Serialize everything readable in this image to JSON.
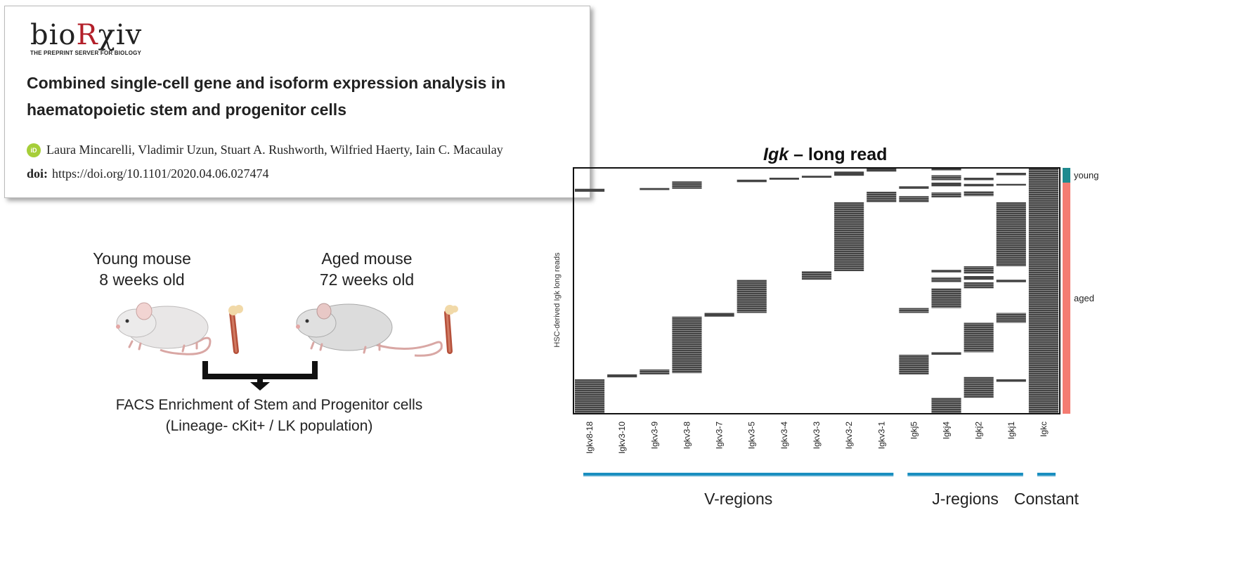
{
  "paper": {
    "logo_pre": "bio",
    "logo_r": "R",
    "logo_post": "χiv",
    "logo_sub": "THE PREPRINT SERVER FOR BIOLOGY",
    "title_line1": "Combined single-cell gene and isoform expression analysis in",
    "title_line2": "haematopoietic stem and progenitor cells",
    "orcid_icon": "iD",
    "authors": "Laura Mincarelli, Vladimir Uzun, Stuart A. Rushworth, Wilfried Haerty, Iain C. Macaulay",
    "doi_label": "doi:",
    "doi_url": "https://doi.org/10.1101/2020.04.06.027474"
  },
  "diagram": {
    "young_line1": "Young mouse",
    "young_line2": "8 weeks old",
    "aged_line1": "Aged mouse",
    "aged_line2": "72 weeks old",
    "facs_line1": "FACS Enrichment of Stem and Progenitor cells",
    "facs_line2": "(Lineage- cKit+ / LK population)",
    "icons": [
      "young-mouse-icon",
      "bone-icon",
      "aged-mouse-icon",
      "bone-icon",
      "merge-arrow-icon"
    ],
    "colors": {
      "mouse": "#e8e6e6",
      "bone": "#b5503a",
      "arrow": "#111111"
    }
  },
  "chart_data": {
    "type": "heatmap",
    "title_italic": "Igk",
    "title_rest": " – long read",
    "ylabel": "HSC-derived Igk long reads",
    "columns": [
      "Igkv8-18",
      "Igkv3-10",
      "Igkv3-9",
      "Igkv3-8",
      "Igkv3-7",
      "Igkv3-5",
      "Igkv3-4",
      "Igkv3-3",
      "Igkv3-2",
      "Igkv3-1",
      "Igkj5",
      "Igkj4",
      "Igkj2",
      "Igkj1",
      "Igkc"
    ],
    "row_groups": [
      {
        "name": "young",
        "color": "#1f8a8f",
        "start": 0.0,
        "end": 0.06
      },
      {
        "name": "aged",
        "color": "#f47c72",
        "start": 0.06,
        "end": 1.0
      }
    ],
    "region_groups": [
      {
        "name": "V-regions",
        "first_col": 0,
        "last_col": 9
      },
      {
        "name": "J-regions",
        "first_col": 10,
        "last_col": 13
      },
      {
        "name": "Constant",
        "first_col": 14,
        "last_col": 14
      }
    ],
    "group_bar_color": "#1a8fc0",
    "cell_color": "#444444",
    "blocks": [
      {
        "col": 0,
        "start": 0.085,
        "end": 0.097
      },
      {
        "col": 0,
        "start": 0.86,
        "end": 1.0
      },
      {
        "col": 1,
        "start": 0.84,
        "end": 0.852
      },
      {
        "col": 2,
        "start": 0.082,
        "end": 0.09
      },
      {
        "col": 2,
        "start": 0.82,
        "end": 0.84
      },
      {
        "col": 3,
        "start": 0.055,
        "end": 0.085
      },
      {
        "col": 3,
        "start": 0.605,
        "end": 0.835
      },
      {
        "col": 4,
        "start": 0.59,
        "end": 0.605
      },
      {
        "col": 5,
        "start": 0.048,
        "end": 0.058
      },
      {
        "col": 5,
        "start": 0.455,
        "end": 0.59
      },
      {
        "col": 6,
        "start": 0.04,
        "end": 0.048
      },
      {
        "col": 7,
        "start": 0.032,
        "end": 0.04
      },
      {
        "col": 7,
        "start": 0.42,
        "end": 0.455
      },
      {
        "col": 8,
        "start": 0.015,
        "end": 0.032
      },
      {
        "col": 8,
        "start": 0.14,
        "end": 0.42
      },
      {
        "col": 9,
        "start": 0.0,
        "end": 0.015
      },
      {
        "col": 9,
        "start": 0.097,
        "end": 0.14
      },
      {
        "col": 10,
        "start": 0.075,
        "end": 0.085
      },
      {
        "col": 10,
        "start": 0.115,
        "end": 0.14
      },
      {
        "col": 10,
        "start": 0.57,
        "end": 0.59
      },
      {
        "col": 10,
        "start": 0.76,
        "end": 0.84
      },
      {
        "col": 11,
        "start": 0.0,
        "end": 0.01
      },
      {
        "col": 11,
        "start": 0.03,
        "end": 0.05
      },
      {
        "col": 11,
        "start": 0.06,
        "end": 0.075
      },
      {
        "col": 11,
        "start": 0.1,
        "end": 0.12
      },
      {
        "col": 11,
        "start": 0.415,
        "end": 0.425
      },
      {
        "col": 11,
        "start": 0.445,
        "end": 0.465
      },
      {
        "col": 11,
        "start": 0.49,
        "end": 0.57
      },
      {
        "col": 11,
        "start": 0.75,
        "end": 0.76
      },
      {
        "col": 11,
        "start": 0.935,
        "end": 1.0
      },
      {
        "col": 12,
        "start": 0.04,
        "end": 0.05
      },
      {
        "col": 12,
        "start": 0.065,
        "end": 0.075
      },
      {
        "col": 12,
        "start": 0.095,
        "end": 0.115
      },
      {
        "col": 12,
        "start": 0.4,
        "end": 0.43
      },
      {
        "col": 12,
        "start": 0.44,
        "end": 0.455
      },
      {
        "col": 12,
        "start": 0.465,
        "end": 0.49
      },
      {
        "col": 12,
        "start": 0.63,
        "end": 0.75
      },
      {
        "col": 12,
        "start": 0.85,
        "end": 0.935
      },
      {
        "col": 13,
        "start": 0.02,
        "end": 0.03
      },
      {
        "col": 13,
        "start": 0.065,
        "end": 0.072
      },
      {
        "col": 13,
        "start": 0.14,
        "end": 0.4
      },
      {
        "col": 13,
        "start": 0.455,
        "end": 0.465
      },
      {
        "col": 13,
        "start": 0.59,
        "end": 0.63
      },
      {
        "col": 13,
        "start": 0.86,
        "end": 0.87
      },
      {
        "col": 14,
        "start": 0.0,
        "end": 1.0
      }
    ]
  }
}
